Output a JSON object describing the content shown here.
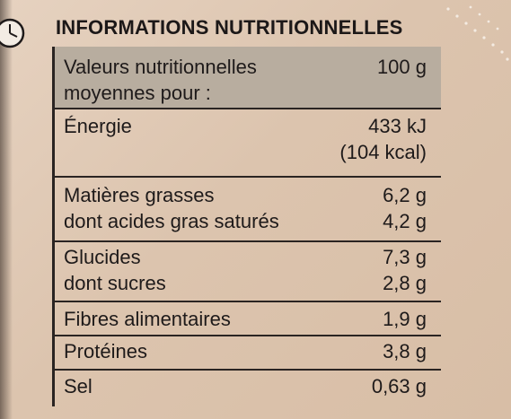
{
  "title": "INFORMATIONS NUTRITIONNELLES",
  "header": {
    "label_line1": "Valeurs nutritionnelles",
    "label_line2": "moyennes pour :",
    "value": "100 g"
  },
  "rows": [
    {
      "label_lines": [
        "Énergie"
      ],
      "value_lines": [
        "433 kJ",
        "(104 kcal)"
      ]
    },
    {
      "label_lines": [
        "Matières grasses",
        "dont acides gras saturés"
      ],
      "value_lines": [
        "6,2 g",
        "4,2 g"
      ]
    },
    {
      "label_lines": [
        "Glucides",
        "dont sucres"
      ],
      "value_lines": [
        "7,3 g",
        "2,8 g"
      ]
    },
    {
      "label_lines": [
        "Fibres alimentaires"
      ],
      "value_lines": [
        "1,9 g"
      ]
    },
    {
      "label_lines": [
        "Protéines"
      ],
      "value_lines": [
        "3,8 g"
      ]
    },
    {
      "label_lines": [
        "Sel"
      ],
      "value_lines": [
        "0,63 g"
      ]
    }
  ],
  "colors": {
    "background": "#dcc4ae",
    "header_band": "#b8ad9f",
    "text": "#1e1a1a"
  },
  "icons": [
    "clock-icon"
  ]
}
